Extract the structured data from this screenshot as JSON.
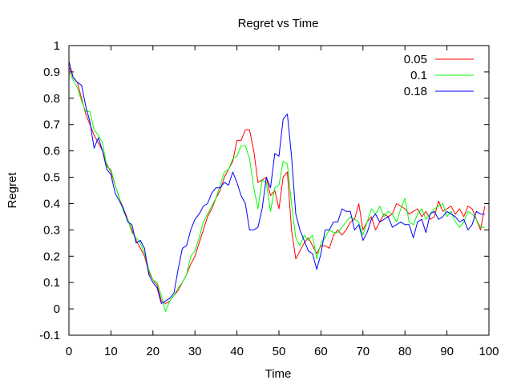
{
  "chart_data": {
    "type": "line",
    "title": "Regret vs Time",
    "xlabel": "Time",
    "ylabel": "Regret",
    "xlim": [
      0,
      100
    ],
    "ylim": [
      -0.1,
      1
    ],
    "xticks": [
      0,
      10,
      20,
      30,
      40,
      50,
      60,
      70,
      80,
      90,
      100
    ],
    "yticks": [
      -0.1,
      0,
      0.1,
      0.2,
      0.3,
      0.4,
      0.5,
      0.6,
      0.7,
      0.8,
      0.9,
      1
    ],
    "xtick_labels": [
      "0",
      "10",
      "20",
      "30",
      "40",
      "50",
      "60",
      "70",
      "80",
      "90",
      "100"
    ],
    "ytick_labels": [
      "-0.1",
      "0",
      "0.1",
      "0.2",
      "0.3",
      "0.4",
      "0.5",
      "0.6",
      "0.7",
      "0.8",
      "0.9",
      "1"
    ],
    "grid": false,
    "legend_position": "top-right",
    "x": [
      0,
      1,
      2,
      3,
      4,
      5,
      6,
      7,
      8,
      9,
      10,
      11,
      12,
      13,
      14,
      15,
      16,
      17,
      18,
      19,
      20,
      21,
      22,
      23,
      24,
      25,
      26,
      27,
      28,
      29,
      30,
      31,
      32,
      33,
      34,
      35,
      36,
      37,
      38,
      39,
      40,
      41,
      42,
      43,
      44,
      45,
      46,
      47,
      48,
      49,
      50,
      51,
      52,
      53,
      54,
      55,
      56,
      57,
      58,
      59,
      60,
      61,
      62,
      63,
      64,
      65,
      66,
      67,
      68,
      69,
      70,
      71,
      72,
      73,
      74,
      75,
      76,
      77,
      78,
      79,
      80,
      81,
      82,
      83,
      84,
      85,
      86,
      87,
      88,
      89,
      90,
      91,
      92,
      93,
      94,
      95,
      96,
      97,
      98,
      99
    ],
    "series": [
      {
        "name": "0.05",
        "color": "#ff0000",
        "values": [
          0.92,
          0.88,
          0.86,
          0.8,
          0.74,
          0.7,
          0.66,
          0.63,
          0.6,
          0.55,
          0.52,
          0.47,
          0.42,
          0.38,
          0.34,
          0.3,
          0.26,
          0.23,
          0.2,
          0.14,
          0.11,
          0.09,
          0.03,
          0.02,
          0.03,
          0.05,
          0.07,
          0.1,
          0.13,
          0.17,
          0.2,
          0.25,
          0.3,
          0.35,
          0.38,
          0.42,
          0.45,
          0.5,
          0.53,
          0.56,
          0.64,
          0.64,
          0.68,
          0.68,
          0.6,
          0.48,
          0.49,
          0.5,
          0.43,
          0.45,
          0.38,
          0.5,
          0.52,
          0.3,
          0.19,
          0.22,
          0.25,
          0.27,
          0.24,
          0.21,
          0.24,
          0.24,
          0.23,
          0.28,
          0.3,
          0.28,
          0.3,
          0.33,
          0.34,
          0.4,
          0.3,
          0.33,
          0.35,
          0.3,
          0.33,
          0.36,
          0.35,
          0.36,
          0.4,
          0.39,
          0.38,
          0.36,
          0.37,
          0.38,
          0.35,
          0.37,
          0.34,
          0.35,
          0.41,
          0.37,
          0.38,
          0.39,
          0.36,
          0.38,
          0.35,
          0.39,
          0.38,
          0.34,
          0.3,
          0.39
        ]
      },
      {
        "name": "0.1",
        "color": "#00ff00",
        "values": [
          0.9,
          0.87,
          0.84,
          0.79,
          0.75,
          0.75,
          0.68,
          0.66,
          0.63,
          0.54,
          0.53,
          0.47,
          0.42,
          0.37,
          0.34,
          0.29,
          0.27,
          0.25,
          0.21,
          0.15,
          0.11,
          0.1,
          0.05,
          -0.01,
          0.03,
          0.05,
          0.08,
          0.1,
          0.13,
          0.2,
          0.22,
          0.27,
          0.33,
          0.36,
          0.39,
          0.42,
          0.47,
          0.52,
          0.53,
          0.57,
          0.58,
          0.62,
          0.62,
          0.57,
          0.46,
          0.38,
          0.49,
          0.48,
          0.37,
          0.46,
          0.47,
          0.56,
          0.55,
          0.4,
          0.27,
          0.24,
          0.28,
          0.26,
          0.28,
          0.19,
          0.25,
          0.27,
          0.3,
          0.29,
          0.29,
          0.31,
          0.33,
          0.35,
          0.34,
          0.33,
          0.28,
          0.33,
          0.38,
          0.36,
          0.39,
          0.35,
          0.37,
          0.36,
          0.33,
          0.38,
          0.42,
          0.33,
          0.32,
          0.36,
          0.38,
          0.34,
          0.36,
          0.38,
          0.39,
          0.4,
          0.35,
          0.37,
          0.33,
          0.31,
          0.33,
          0.37,
          0.36,
          0.34,
          0.31,
          0.31
        ]
      },
      {
        "name": "0.18",
        "color": "#0000ff",
        "values": [
          0.94,
          0.88,
          0.86,
          0.85,
          0.77,
          0.71,
          0.61,
          0.65,
          0.6,
          0.53,
          0.51,
          0.44,
          0.41,
          0.38,
          0.33,
          0.32,
          0.25,
          0.26,
          0.23,
          0.13,
          0.1,
          0.08,
          0.02,
          0.03,
          0.04,
          0.06,
          0.15,
          0.23,
          0.24,
          0.3,
          0.34,
          0.36,
          0.39,
          0.4,
          0.44,
          0.46,
          0.46,
          0.48,
          0.47,
          0.52,
          0.48,
          0.43,
          0.4,
          0.3,
          0.3,
          0.31,
          0.38,
          0.5,
          0.46,
          0.59,
          0.58,
          0.72,
          0.74,
          0.58,
          0.36,
          0.3,
          0.26,
          0.22,
          0.21,
          0.15,
          0.21,
          0.3,
          0.3,
          0.33,
          0.33,
          0.38,
          0.37,
          0.37,
          0.3,
          0.32,
          0.26,
          0.29,
          0.34,
          0.36,
          0.33,
          0.34,
          0.35,
          0.31,
          0.32,
          0.33,
          0.32,
          0.32,
          0.27,
          0.33,
          0.34,
          0.29,
          0.36,
          0.37,
          0.34,
          0.35,
          0.37,
          0.36,
          0.35,
          0.33,
          0.34,
          0.3,
          0.32,
          0.37,
          0.36,
          0.36
        ]
      }
    ]
  }
}
